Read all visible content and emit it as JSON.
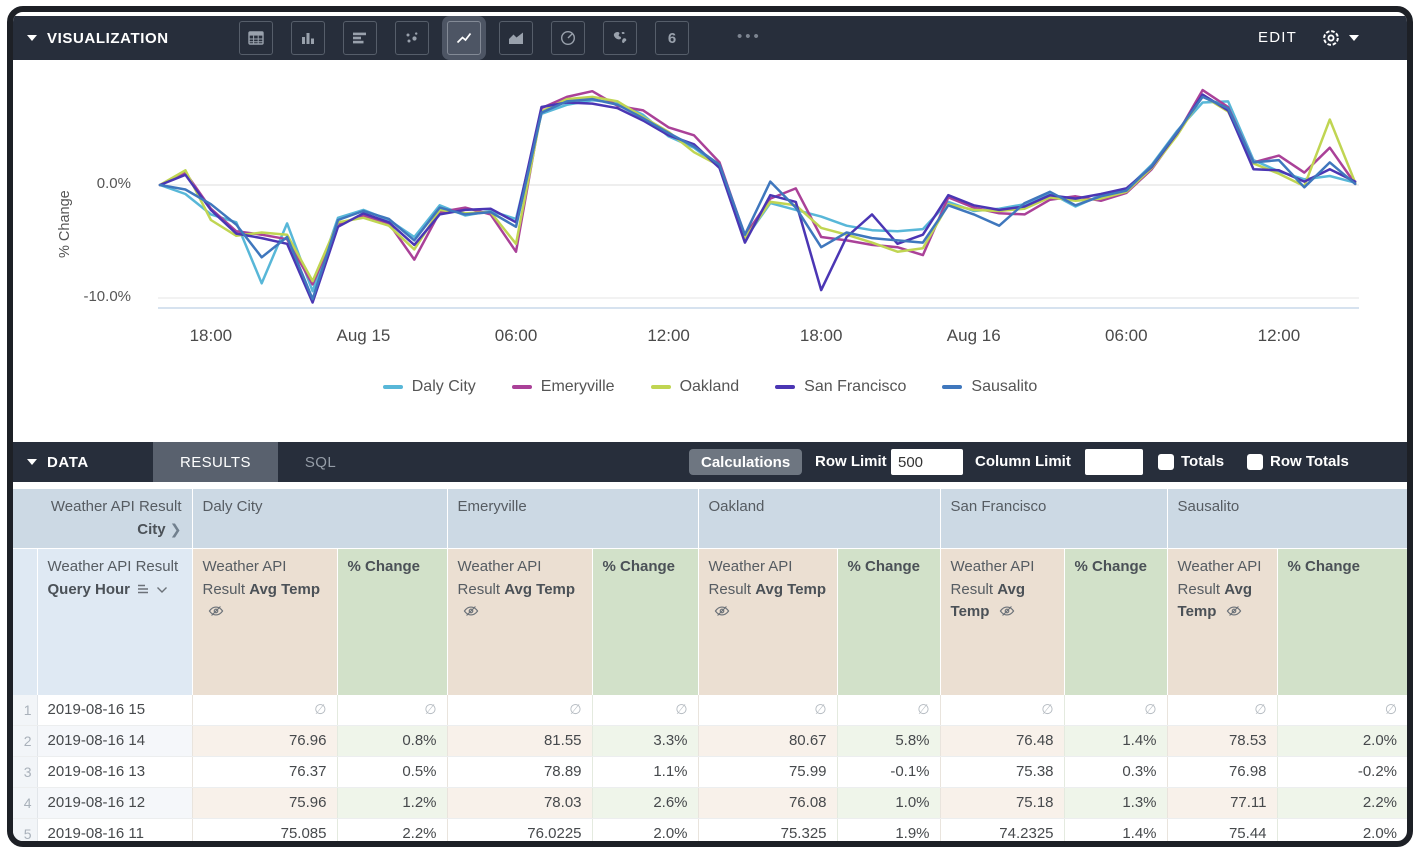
{
  "viz_bar": {
    "title": "VISUALIZATION",
    "edit_label": "EDIT",
    "overflow_glyph": "•••",
    "icons": [
      {
        "name": "table",
        "selected": false
      },
      {
        "name": "bar-chart",
        "selected": false
      },
      {
        "name": "horizontal-bar-chart",
        "selected": false
      },
      {
        "name": "scatter-plot",
        "selected": false
      },
      {
        "name": "line-chart",
        "selected": true
      },
      {
        "name": "area-chart",
        "selected": false
      },
      {
        "name": "pie-chart",
        "selected": false
      },
      {
        "name": "map",
        "selected": false
      },
      {
        "name": "single-value",
        "selected": false
      }
    ],
    "single_value_glyph": "6"
  },
  "chart_data": {
    "type": "line",
    "title": "",
    "xlabel": "",
    "ylabel": "% Change",
    "ylim": [
      -11,
      9
    ],
    "grid": "horizontal",
    "legend_position": "bottom",
    "yticks": [
      {
        "label": "0.0%",
        "value": 0
      },
      {
        "label": "-10.0%",
        "value": -10
      }
    ],
    "xticks": [
      {
        "index": 2,
        "label": "18:00"
      },
      {
        "index": 8,
        "label": "Aug 15"
      },
      {
        "index": 14,
        "label": "06:00"
      },
      {
        "index": 20,
        "label": "12:00"
      },
      {
        "index": 26,
        "label": "18:00"
      },
      {
        "index": 32,
        "label": "Aug 16"
      },
      {
        "index": 38,
        "label": "06:00"
      },
      {
        "index": 44,
        "label": "12:00"
      }
    ],
    "series": [
      {
        "name": "Daly City",
        "color": "#58b7d8",
        "values": [
          0,
          -0.8,
          -2.6,
          -3.3,
          -8.7,
          -3.4,
          -9.4,
          -2.9,
          -2.2,
          -3.1,
          -4.6,
          -1.8,
          -2.7,
          -2.3,
          -3.0,
          6.3,
          7.1,
          7.5,
          7.3,
          6.2,
          4.3,
          3.3,
          1.6,
          -4.8,
          -1.6,
          -2.2,
          -2.8,
          -3.6,
          -4.0,
          -4.1,
          -3.9,
          -1.5,
          -2.3,
          -2.1,
          -1.7,
          -0.7,
          -1.9,
          -0.9,
          -0.4,
          1.8,
          4.8,
          7.3,
          7.4,
          2.2,
          1.2,
          0.5,
          0.8,
          0.2
        ]
      },
      {
        "name": "Emeryville",
        "color": "#aa4198",
        "values": [
          0,
          1.1,
          -2.1,
          -4.1,
          -4.4,
          -4.8,
          -8.8,
          -3.5,
          -2.7,
          -3.4,
          -6.6,
          -2.4,
          -2.0,
          -2.6,
          -5.9,
          6.8,
          7.8,
          8.3,
          7.0,
          6.6,
          5.1,
          4.4,
          2.0,
          -4.5,
          -1.2,
          -0.3,
          -4.6,
          -4.9,
          -5.3,
          -5.5,
          -6.2,
          -1.1,
          -2.0,
          -2.5,
          -2.6,
          -1.3,
          -1.0,
          -1.4,
          -0.7,
          1.4,
          4.5,
          8.4,
          6.9,
          2.0,
          2.6,
          1.1,
          3.3,
          0.1
        ]
      },
      {
        "name": "Oakland",
        "color": "#c0d552",
        "values": [
          0,
          1.3,
          -3.1,
          -4.5,
          -4.2,
          -4.4,
          -8.5,
          -3.3,
          -2.9,
          -3.6,
          -5.7,
          -2.2,
          -2.5,
          -2.4,
          -5.2,
          6.5,
          7.6,
          7.8,
          7.4,
          6.0,
          4.7,
          2.9,
          1.7,
          -4.7,
          -1.5,
          -1.8,
          -3.8,
          -4.4,
          -5.1,
          -5.9,
          -5.6,
          -1.7,
          -2.2,
          -2.3,
          -2.1,
          -1.1,
          -1.4,
          -1.2,
          -0.6,
          1.5,
          4.4,
          7.9,
          6.5,
          1.9,
          1.0,
          -0.1,
          5.8,
          0.2
        ]
      },
      {
        "name": "San Francisco",
        "color": "#4b36b4",
        "values": [
          0,
          0.9,
          -2.2,
          -4.3,
          -4.7,
          -5.2,
          -10.4,
          -3.7,
          -2.5,
          -3.3,
          -5.3,
          -2.6,
          -2.2,
          -2.1,
          -3.3,
          6.9,
          7.3,
          7.2,
          6.8,
          5.7,
          4.4,
          3.6,
          1.5,
          -5.1,
          -0.9,
          -1.5,
          -9.3,
          -4.6,
          -2.6,
          -5.2,
          -4.4,
          -0.9,
          -1.8,
          -2.2,
          -1.9,
          -0.9,
          -1.2,
          -0.8,
          -0.3,
          1.6,
          4.6,
          8.0,
          6.6,
          1.4,
          1.3,
          0.3,
          1.4,
          0.3
        ]
      },
      {
        "name": "Sausalito",
        "color": "#3f77bd",
        "values": [
          0,
          -0.4,
          -1.7,
          -3.5,
          -6.4,
          -4.6,
          -10.1,
          -3.1,
          -2.3,
          -3.0,
          -4.9,
          -2.0,
          -2.6,
          -2.4,
          -3.7,
          6.4,
          7.4,
          7.6,
          7.1,
          5.9,
          4.6,
          3.4,
          1.8,
          -4.4,
          0.3,
          -2.0,
          -5.5,
          -4.2,
          -4.7,
          -4.9,
          -5.1,
          -1.8,
          -2.6,
          -3.6,
          -1.6,
          -0.6,
          -1.8,
          -1.0,
          -0.5,
          1.7,
          4.7,
          7.8,
          6.8,
          2.0,
          2.2,
          -0.2,
          2.0,
          0.1
        ]
      }
    ]
  },
  "data_bar": {
    "title": "DATA",
    "tabs": [
      {
        "label": "RESULTS",
        "active": true
      },
      {
        "label": "SQL",
        "active": false
      }
    ],
    "calculations_label": "Calculations",
    "row_limit_label": "Row Limit",
    "row_limit_value": "500",
    "column_limit_label": "Column Limit",
    "column_limit_value": "",
    "totals_label": "Totals",
    "totals_checked": false,
    "row_totals_label": "Row Totals",
    "row_totals_checked": false
  },
  "table": {
    "corner_header": {
      "prefix": "Weather API Result",
      "bold": "City"
    },
    "city_groups": [
      "Daly City",
      "Emeryville",
      "Oakland",
      "San Francisco",
      "Sausalito"
    ],
    "dimension_header": {
      "prefix": "Weather API Result",
      "bold": "Query Hour"
    },
    "measure_header": {
      "prefix": "Weather API Result",
      "bold": "Avg Temp"
    },
    "pct_header": {
      "bold": "% Change"
    },
    "null_glyph": "∅",
    "column_tints": {
      "city_header": "#ccd9e4",
      "dimension": "#dfe9f3",
      "measure": "#ebdfd2",
      "pct_change": "#d2e1c9"
    },
    "rows": [
      {
        "num": "1",
        "hour": "2019-08-16 15",
        "values": [
          "∅",
          "∅",
          "∅",
          "∅",
          "∅",
          "∅",
          "∅",
          "∅",
          "∅",
          "∅"
        ]
      },
      {
        "num": "2",
        "hour": "2019-08-16 14",
        "values": [
          "76.96",
          "0.8%",
          "81.55",
          "3.3%",
          "80.67",
          "5.8%",
          "76.48",
          "1.4%",
          "78.53",
          "2.0%"
        ]
      },
      {
        "num": "3",
        "hour": "2019-08-16 13",
        "values": [
          "76.37",
          "0.5%",
          "78.89",
          "1.1%",
          "75.99",
          "-0.1%",
          "75.38",
          "0.3%",
          "76.98",
          "-0.2%"
        ]
      },
      {
        "num": "4",
        "hour": "2019-08-16 12",
        "values": [
          "75.96",
          "1.2%",
          "78.03",
          "2.6%",
          "76.08",
          "1.0%",
          "75.18",
          "1.3%",
          "77.11",
          "2.2%"
        ]
      },
      {
        "num": "5",
        "hour": "2019-08-16 11",
        "values": [
          "75.085",
          "2.2%",
          "76.0225",
          "2.0%",
          "75.325",
          "1.9%",
          "74.2325",
          "1.4%",
          "75.44",
          "2.0%"
        ]
      }
    ]
  }
}
